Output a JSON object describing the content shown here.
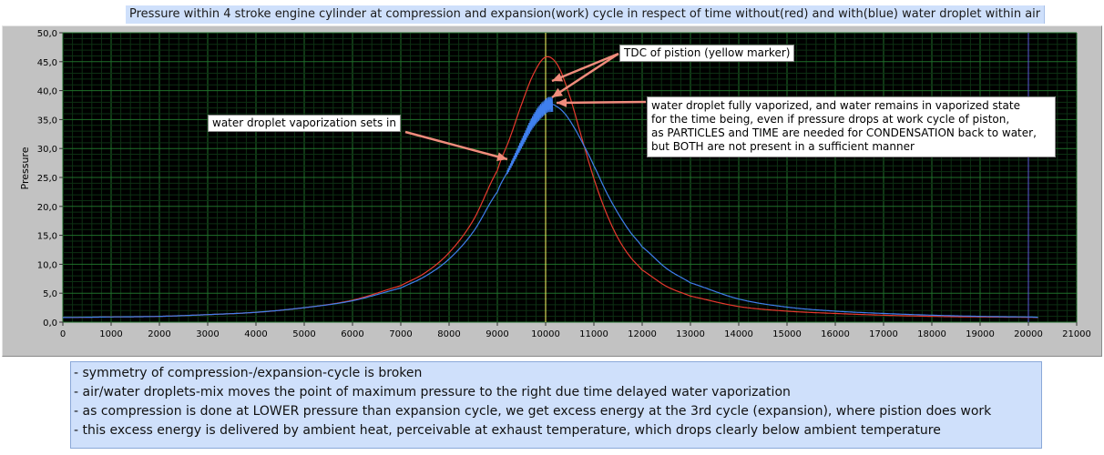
{
  "title": "Pressure within 4 stroke engine cylinder at compression and expansion(work) cycle in respect of time without(red) and with(blue) water droplet within air",
  "annotations": {
    "vaporization": "water droplet vaporization sets in",
    "tdc": "TDC of pistion (yellow marker)",
    "fully": [
      "water droplet fully vaporized, and water remains in vaporized state",
      "for the time being, even if pressure drops at work cycle of piston,",
      "as PARTICLES and TIME are needed for CONDENSATION back to water,",
      "but BOTH are not present in a sufficient manner"
    ]
  },
  "notes": [
    "- symmetry of compression-/expansion-cycle is broken",
    "- air/water droplets-mix moves the point of maximum pressure to the right due time delayed water vaporization",
    "- as compression is done at LOWER pressure than expansion cycle, we get excess energy at the 3rd cycle (expansion), where pistion does work",
    "- this excess energy is delivered by ambient heat, perceivable at exhaust temperature, which drops clearly below ambient temperature"
  ],
  "colors": {
    "plot_bg": "#000000",
    "grid_major": "#1f6f2a",
    "grid_minor": "#0d3013",
    "red_series": "#e8392e",
    "blue_series": "#3f7fee",
    "tdc_marker": "#ffff66",
    "end_marker": "#5a5ad6",
    "arrow": "#f08c7c"
  },
  "chart_data": {
    "type": "line",
    "ylabel": "Pressure",
    "xlim": [
      0,
      21000
    ],
    "ylim": [
      0,
      50
    ],
    "grid": true,
    "xticks": [
      "0",
      "1000",
      "2000",
      "3000",
      "4000",
      "5000",
      "6000",
      "7000",
      "8000",
      "9000",
      "10000",
      "11000",
      "12000",
      "13000",
      "14000",
      "15000",
      "16000",
      "17000",
      "18000",
      "19000",
      "20000",
      "21000"
    ],
    "yticks": [
      "0,0",
      "5,0",
      "10,0",
      "15,0",
      "20,0",
      "25,0",
      "30,0",
      "35,0",
      "40,0",
      "45,0",
      "50,0"
    ],
    "markers": {
      "tdc_x": 10000,
      "end_x": 20000
    },
    "series": [
      {
        "color": "red",
        "x": [
          0,
          1000,
          2000,
          3000,
          4000,
          5000,
          6000,
          7000,
          7500,
          8000,
          8500,
          9000,
          9250,
          9500,
          9750,
          10000,
          10250,
          10500,
          10750,
          11000,
          11250,
          11500,
          11750,
          12000,
          12500,
          13000,
          14000,
          15000,
          16000,
          17000,
          18000,
          19000,
          20000,
          20200
        ],
        "y": [
          0.8,
          0.9,
          1.0,
          1.3,
          1.7,
          2.5,
          3.8,
          6.3,
          8.5,
          12.0,
          17.6,
          26.2,
          31.6,
          37.6,
          42.9,
          45.8,
          44.4,
          39.0,
          31.8,
          24.8,
          19.0,
          14.5,
          11.3,
          9.0,
          6.2,
          4.5,
          2.7,
          1.9,
          1.5,
          1.2,
          1.0,
          0.9,
          0.85,
          0.8
        ]
      },
      {
        "color": "blue",
        "x": [
          0,
          1000,
          2000,
          3000,
          4000,
          5000,
          6000,
          7000,
          7500,
          8000,
          8500,
          9000,
          9250,
          9500,
          9750,
          10000,
          10100,
          10200,
          10400,
          10600,
          10800,
          11000,
          11250,
          11500,
          11750,
          12000,
          12500,
          13000,
          14000,
          15000,
          16000,
          17000,
          18000,
          19000,
          20000,
          20200
        ],
        "y": [
          0.8,
          0.9,
          1.0,
          1.3,
          1.7,
          2.5,
          3.7,
          5.9,
          7.9,
          10.9,
          15.6,
          22.5,
          26.6,
          30.8,
          34.8,
          37.2,
          37.6,
          37.4,
          36.0,
          33.5,
          30.4,
          27.0,
          22.6,
          18.8,
          15.6,
          13.0,
          9.3,
          6.8,
          4.0,
          2.6,
          1.9,
          1.5,
          1.2,
          1.0,
          0.9,
          0.85
        ]
      }
    ],
    "fluctuation_band": {
      "series": "blue",
      "x_range": [
        9200,
        10150
      ],
      "amplitude": 1.3
    }
  }
}
